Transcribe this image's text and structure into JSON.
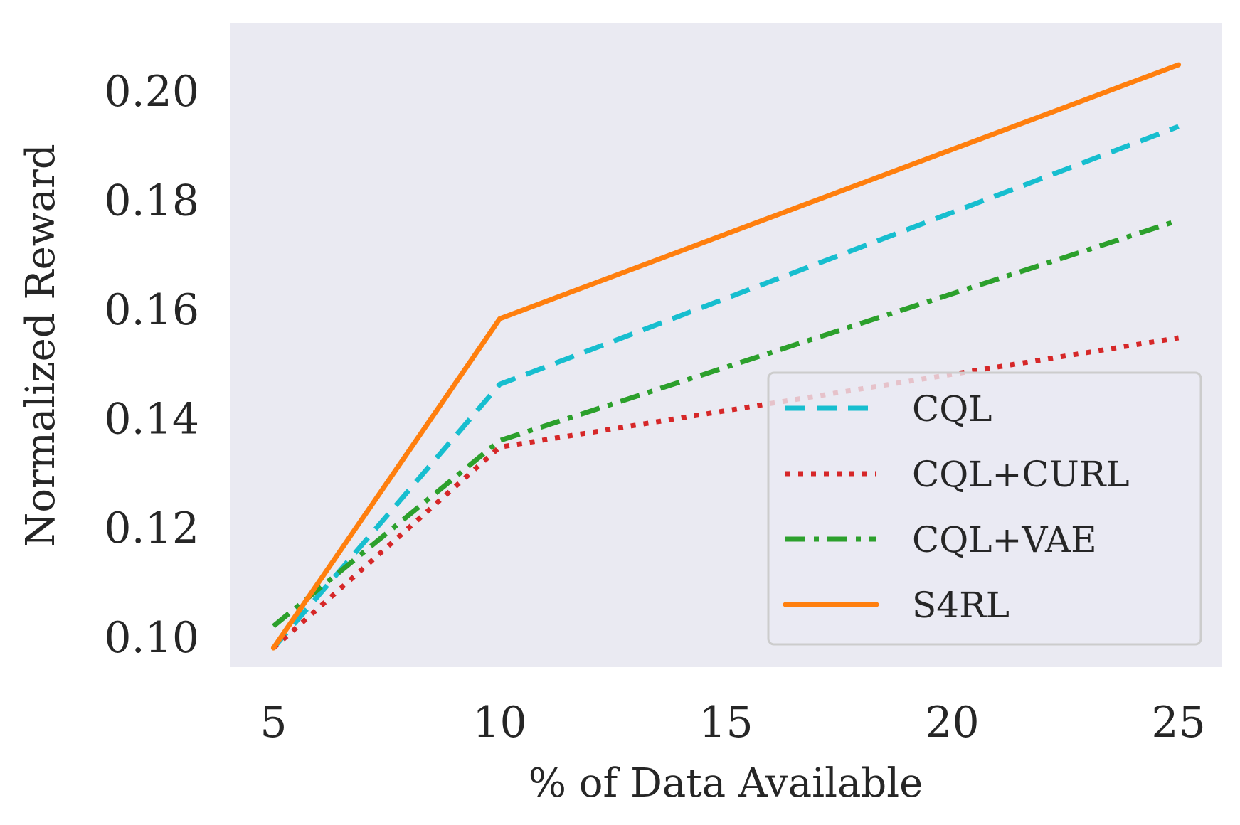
{
  "chart_data": {
    "type": "line",
    "title": "",
    "xlabel": "% of Data Available",
    "ylabel": "Normalized Reward",
    "x": [
      5,
      10,
      25
    ],
    "xticks": [
      5,
      10,
      15,
      20,
      25
    ],
    "xtick_labels": [
      "5",
      "10",
      "15",
      "20",
      "25"
    ],
    "yticks": [
      0.1,
      0.12,
      0.14,
      0.16,
      0.18,
      0.2
    ],
    "ytick_labels": [
      "0.10",
      "0.12",
      "0.14",
      "0.16",
      "0.18",
      "0.20"
    ],
    "xlim": [
      4.05,
      25.95
    ],
    "ylim": [
      0.0945,
      0.2125
    ],
    "grid": false,
    "background": "#eaeaf2",
    "legend_position": "lower-right",
    "series": [
      {
        "name": "CQL",
        "values": [
          0.098,
          0.1463,
          0.1935
        ],
        "color": "#17becf",
        "style": "dashed"
      },
      {
        "name": "CQL+CURL",
        "values": [
          0.098,
          0.1348,
          0.1548
        ],
        "color": "#d62728",
        "style": "dotted"
      },
      {
        "name": "CQL+VAE",
        "values": [
          0.102,
          0.136,
          0.1763
        ],
        "color": "#2ca02c",
        "style": "dashdot"
      },
      {
        "name": "S4RL",
        "values": [
          0.098,
          0.1583,
          0.2048
        ],
        "color": "#ff7f0e",
        "style": "solid"
      }
    ]
  }
}
